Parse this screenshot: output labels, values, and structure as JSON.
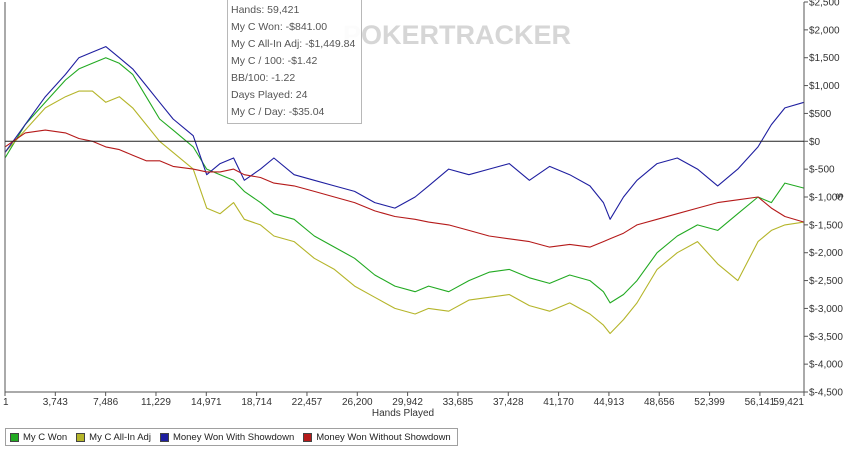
{
  "watermark": "POKERTRACKER",
  "tooltip": {
    "lines": [
      "Hands: 59,421",
      "My C Won: -$841.00",
      "My C All-In Adj: -$1,449.84",
      "My C / 100: -$1.42",
      "BB/100: -1.22",
      "Days Played: 24",
      "My C / Day: -$35.04"
    ]
  },
  "chart_data": {
    "type": "line",
    "xlabel": "Hands Played",
    "ylabel": "$",
    "xlim": [
      1,
      59421
    ],
    "ylim": [
      -4500,
      2500
    ],
    "x_ticks": [
      1,
      3743,
      7486,
      11229,
      14971,
      18714,
      22457,
      26200,
      29942,
      33685,
      37428,
      41170,
      44913,
      48656,
      52399,
      56141,
      59421
    ],
    "x_tick_labels": [
      "1",
      "3,743",
      "7,486",
      "11,229",
      "14,971",
      "18,714",
      "22,457",
      "26,200",
      "29,942",
      "33,685",
      "37,428",
      "41,170",
      "44,913",
      "48,656",
      "52,399",
      "56,141",
      "59,421"
    ],
    "y_ticks": [
      2500,
      2000,
      1500,
      1000,
      500,
      0,
      -500,
      -1000,
      -1500,
      -2000,
      -2500,
      -3000,
      -3500,
      -4000,
      -4500
    ],
    "y_tick_labels": [
      "$2,500",
      "$2,000",
      "$1,500",
      "$1,000",
      "$500",
      "$0",
      "$-500",
      "$-1,000",
      "$-1,500",
      "$-2,000",
      "$-2,500",
      "$-3,000",
      "$-3,500",
      "$-4,000",
      "$-4,500"
    ],
    "legend_position": "bottom-left",
    "series": [
      {
        "name": "My C Won",
        "color": "#22aa22",
        "x": [
          1,
          1500,
          3000,
          4500,
          5500,
          6500,
          7500,
          8500,
          9500,
          10500,
          11500,
          12500,
          14000,
          15000,
          16000,
          17000,
          17800,
          19000,
          20000,
          21500,
          23000,
          24500,
          26000,
          27500,
          29000,
          30500,
          31500,
          33000,
          34500,
          36000,
          37500,
          39000,
          40500,
          42000,
          43500,
          44500,
          45000,
          46000,
          47000,
          48500,
          50000,
          51500,
          53000,
          54500,
          56000,
          57000,
          58000,
          59421
        ],
        "y": [
          -300,
          300,
          700,
          1100,
          1300,
          1400,
          1500,
          1400,
          1200,
          800,
          400,
          200,
          -100,
          -500,
          -600,
          -700,
          -900,
          -1100,
          -1300,
          -1400,
          -1700,
          -1900,
          -2100,
          -2400,
          -2600,
          -2700,
          -2600,
          -2700,
          -2500,
          -2350,
          -2300,
          -2450,
          -2550,
          -2400,
          -2500,
          -2700,
          -2900,
          -2750,
          -2500,
          -2000,
          -1700,
          -1500,
          -1600,
          -1300,
          -1000,
          -1100,
          -750,
          -841
        ]
      },
      {
        "name": "My C All-In Adj",
        "color": "#b5b52a",
        "x": [
          1,
          1500,
          3000,
          4500,
          5500,
          6500,
          7500,
          8500,
          9500,
          10500,
          11500,
          12500,
          14000,
          15000,
          16000,
          17000,
          17800,
          19000,
          20000,
          21500,
          23000,
          24500,
          26000,
          27500,
          29000,
          30500,
          31500,
          33000,
          34500,
          36000,
          37500,
          39000,
          40500,
          42000,
          43500,
          44500,
          45000,
          46000,
          47000,
          48500,
          50000,
          51500,
          53000,
          54500,
          56000,
          57000,
          58000,
          59421
        ],
        "y": [
          -200,
          200,
          600,
          800,
          900,
          900,
          700,
          800,
          600,
          300,
          0,
          -200,
          -500,
          -1200,
          -1300,
          -1100,
          -1400,
          -1500,
          -1700,
          -1800,
          -2100,
          -2300,
          -2600,
          -2800,
          -3000,
          -3100,
          -3000,
          -3050,
          -2850,
          -2800,
          -2750,
          -2950,
          -3050,
          -2900,
          -3100,
          -3300,
          -3450,
          -3200,
          -2900,
          -2300,
          -2000,
          -1800,
          -2200,
          -2500,
          -1800,
          -1600,
          -1500,
          -1450
        ]
      },
      {
        "name": "Money Won With Showdown",
        "color": "#1f1fa0",
        "x": [
          1,
          1500,
          3000,
          4500,
          5500,
          6500,
          7500,
          8500,
          9500,
          10500,
          11500,
          12500,
          14000,
          15000,
          16000,
          17000,
          17800,
          19000,
          20000,
          21500,
          23000,
          24500,
          26000,
          27500,
          29000,
          30500,
          31500,
          33000,
          34500,
          36000,
          37500,
          39000,
          40500,
          42000,
          43500,
          44500,
          45000,
          46000,
          47000,
          48500,
          50000,
          51500,
          53000,
          54500,
          56000,
          57000,
          58000,
          59421
        ],
        "y": [
          -200,
          300,
          800,
          1200,
          1500,
          1600,
          1700,
          1500,
          1300,
          1000,
          700,
          400,
          100,
          -600,
          -400,
          -300,
          -700,
          -500,
          -300,
          -600,
          -700,
          -800,
          -900,
          -1100,
          -1200,
          -1000,
          -800,
          -500,
          -600,
          -500,
          -400,
          -700,
          -450,
          -600,
          -800,
          -1100,
          -1400,
          -1000,
          -700,
          -400,
          -300,
          -500,
          -800,
          -500,
          -100,
          300,
          600,
          700
        ]
      },
      {
        "name": "Money Won Without Showdown",
        "color": "#b51a1a",
        "x": [
          1,
          1500,
          3000,
          4500,
          5500,
          6500,
          7500,
          8500,
          9500,
          10500,
          11500,
          12500,
          14000,
          15000,
          16000,
          17000,
          17800,
          19000,
          20000,
          21500,
          23000,
          24500,
          26000,
          27500,
          29000,
          30500,
          31500,
          33000,
          34500,
          36000,
          37500,
          39000,
          40500,
          42000,
          43500,
          44500,
          45000,
          46000,
          47000,
          48500,
          50000,
          51500,
          53000,
          54500,
          56000,
          57000,
          58000,
          59421
        ],
        "y": [
          -100,
          150,
          200,
          150,
          50,
          0,
          -100,
          -150,
          -250,
          -350,
          -350,
          -450,
          -500,
          -550,
          -550,
          -500,
          -600,
          -650,
          -750,
          -800,
          -900,
          -1000,
          -1100,
          -1250,
          -1350,
          -1400,
          -1450,
          -1500,
          -1600,
          -1700,
          -1750,
          -1800,
          -1900,
          -1850,
          -1900,
          -1800,
          -1750,
          -1650,
          -1500,
          -1400,
          -1300,
          -1200,
          -1100,
          -1050,
          -1000,
          -1200,
          -1350,
          -1450
        ]
      }
    ]
  }
}
